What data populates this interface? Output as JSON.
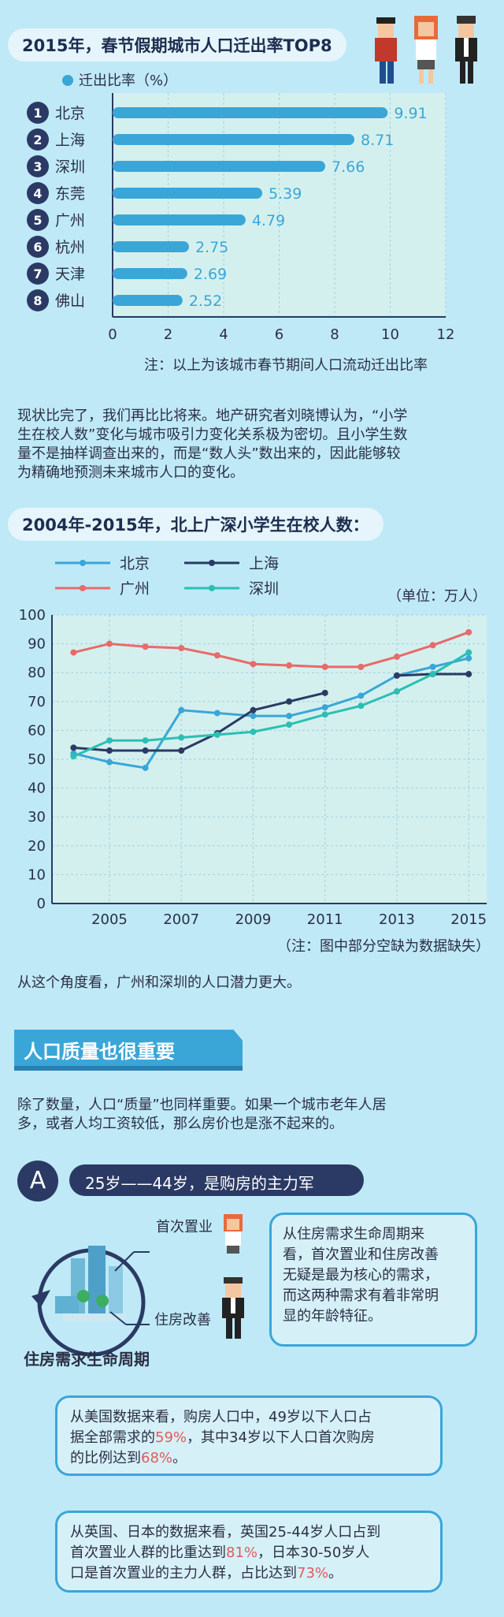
{
  "chart1": {
    "title": "2015年，春节假期城市人口迁出率TOP8",
    "legend": "迁出比率（%）",
    "note": "注：以上为该城市春节期间人口流动迁出比率",
    "chart_data": {
      "type": "bar",
      "orientation": "horizontal",
      "categories": [
        "北京",
        "上海",
        "深圳",
        "东莞",
        "广州",
        "杭州",
        "天津",
        "佛山"
      ],
      "ranks": [
        "1",
        "2",
        "3",
        "4",
        "5",
        "6",
        "7",
        "8"
      ],
      "values": [
        9.91,
        8.71,
        7.66,
        5.39,
        4.79,
        2.75,
        2.69,
        2.52
      ],
      "value_labels": [
        "9.91",
        "8.71",
        "7.66",
        "5.39",
        "4.79",
        "2.75",
        "2.69",
        "2.52"
      ],
      "xlim": [
        0,
        12
      ],
      "xticks": [
        "0",
        "2",
        "4",
        "6",
        "8",
        "10",
        "12"
      ],
      "legend_placement": "top-left",
      "color": "#3aa6d8"
    }
  },
  "paragraph1": [
    "现状比完了，我们再比比将来。地产研究者刘晓博认为，“小学",
    "生在校人数”变化与城市吸引力变化关系极为密切。且小学生数",
    "量不是抽样调查出来的，而是“数人头”数出来的，因此能够较",
    "为精确地预测未来城市人口的变化。"
  ],
  "chart2": {
    "title": "2004年-2015年，北上广深小学生在校人数：",
    "unit": "（单位：万人）",
    "note": "（注：图中部分空缺为数据缺失）",
    "chart_data": {
      "type": "line",
      "x": [
        2004,
        2005,
        2006,
        2007,
        2008,
        2009,
        2010,
        2011,
        2012,
        2013,
        2014,
        2015
      ],
      "xticks": [
        "2005",
        "2007",
        "2009",
        "2011",
        "2013",
        "2015"
      ],
      "yticks": [
        "0",
        "10",
        "20",
        "30",
        "40",
        "50",
        "60",
        "70",
        "80",
        "90",
        "100"
      ],
      "ylim": [
        0,
        100
      ],
      "series": [
        {
          "name": "北京",
          "color": "#3aa6d8",
          "values": [
            52,
            49,
            47,
            67,
            66,
            65,
            65,
            68,
            72,
            79,
            82,
            85
          ]
        },
        {
          "name": "上海",
          "color": "#2b3a64",
          "values": [
            54,
            53,
            53,
            53,
            59,
            67,
            70,
            73,
            null,
            79,
            79.5,
            79.5
          ]
        },
        {
          "name": "广州",
          "color": "#e86a6a",
          "values": [
            87,
            90,
            89,
            88.5,
            86,
            83,
            82.5,
            82,
            82,
            85.5,
            89.5,
            94
          ]
        },
        {
          "name": "深圳",
          "color": "#2bbfb3",
          "values": [
            51,
            56.5,
            56.5,
            57.5,
            58.5,
            59.5,
            62,
            65.5,
            68.5,
            73.5,
            79.5,
            87
          ]
        }
      ],
      "legend_placement": "top-left"
    }
  },
  "paragraph2": "从这个角度看，广州和深圳的人口潜力更大。",
  "section": {
    "banner": "人口质量也很重要",
    "text": [
      "除了数量，人口“质量”也同样重要。如果一个城市老年人居",
      "多，或者人均工资较低，那么房价也是涨不起来的。"
    ],
    "badge": "A",
    "subtitle": "25岁——44岁，是购房的主力军",
    "label_first": "首次置业",
    "label_improve": "住房改善",
    "caption": "住房需求生命周期",
    "box1": [
      "从住房需求生命周期来",
      "看，首次置业和住房改善",
      "无疑是最为核心的需求，",
      "而这两种需求有着非常明",
      "显的年龄特征。"
    ],
    "box2_a": "从美国数据来看，购房人口中，49岁以下人口占",
    "box2_b": "据全部需求的",
    "box2_h1": "59%",
    "box2_c": "，其中34岁以下人口首次购房",
    "box2_d": "的比例达到",
    "box2_h2": "68%",
    "box2_e": "。",
    "box3_a": "从英国、日本的数据来看，英国25-44岁人口占到",
    "box3_b": "首次置业人群的比重达到",
    "box3_h1": "81%",
    "box3_c": "，日本30-50岁人",
    "box3_d": "口是首次置业的主力人群，占比达到",
    "box3_h2": "73%",
    "box3_e": "。"
  }
}
